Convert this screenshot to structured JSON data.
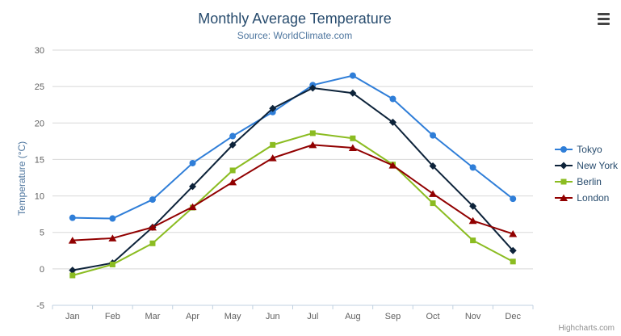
{
  "credits": "Highcharts.com",
  "chart_data": {
    "type": "line",
    "title": "Monthly Average Temperature",
    "subtitle": "Source: WorldClimate.com",
    "xlabel": "",
    "ylabel": "Temperature (°C)",
    "ylim": [
      -5,
      30
    ],
    "ytick_interval": 5,
    "grid": true,
    "legend_position": "right",
    "categories": [
      "Jan",
      "Feb",
      "Mar",
      "Apr",
      "May",
      "Jun",
      "Jul",
      "Aug",
      "Sep",
      "Oct",
      "Nov",
      "Dec"
    ],
    "series": [
      {
        "name": "Tokyo",
        "color": "#2f7ed8",
        "marker": "circle",
        "values": [
          7.0,
          6.9,
          9.5,
          14.5,
          18.2,
          21.5,
          25.2,
          26.5,
          23.3,
          18.3,
          13.9,
          9.6
        ]
      },
      {
        "name": "New York",
        "color": "#0d233a",
        "marker": "diamond",
        "values": [
          -0.2,
          0.8,
          5.7,
          11.3,
          17.0,
          22.0,
          24.8,
          24.1,
          20.1,
          14.1,
          8.6,
          2.5
        ]
      },
      {
        "name": "Berlin",
        "color": "#8bbc21",
        "marker": "square",
        "values": [
          -0.9,
          0.6,
          3.5,
          8.4,
          13.5,
          17.0,
          18.6,
          17.9,
          14.3,
          9.0,
          3.9,
          1.0
        ]
      },
      {
        "name": "London",
        "color": "#910000",
        "marker": "triangle",
        "values": [
          3.9,
          4.2,
          5.7,
          8.5,
          11.9,
          15.2,
          17.0,
          16.6,
          14.2,
          10.3,
          6.6,
          4.8
        ]
      }
    ]
  }
}
